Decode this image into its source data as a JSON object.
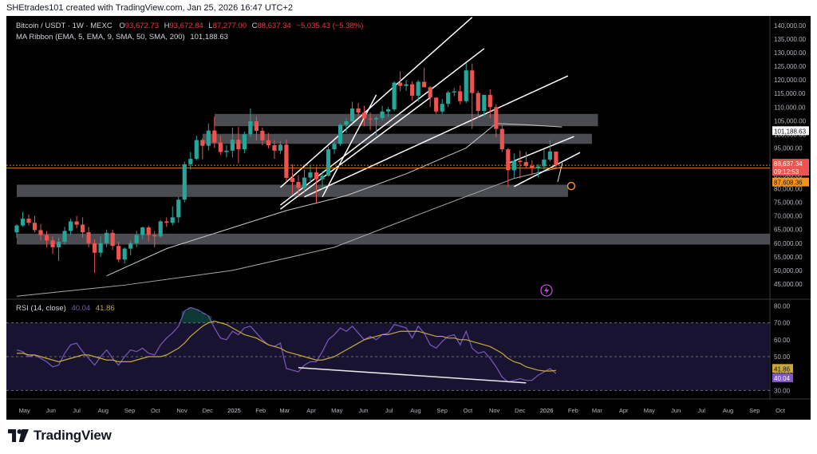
{
  "header": {
    "attribution": "SHEtrades101 created with TradingView.com, Jan 25, 2026 16:47 UTC+2"
  },
  "legend": {
    "symbol": "Bitcoin / USDT · 1W · MEXC",
    "o_label": "O",
    "o_value": "93,672.73",
    "h_label": "H",
    "h_value": "93,672.84",
    "l_label": "L",
    "l_value": "87,277.00",
    "c_label": "C",
    "c_value": "88,637.34",
    "change": "−5,035.43 (−5.38%)",
    "ma_ribbon": "MA Ribbon (EMA, 5, EMA, 9, SMA, 50, SMA, 200)",
    "ma_value": "101,188.63",
    "rsi_label": "RSI (14, close)",
    "rsi_value": "40.04",
    "rsi_ma_value": "41.86"
  },
  "price_axis": {
    "ticks": [
      "140,000.00",
      "135,000.00",
      "130,000.00",
      "125,000.00",
      "120,000.00",
      "115,000.00",
      "110,000.00",
      "105,000.00",
      "100,000.00",
      "95,000.00",
      "90,000.00",
      "85,000.00",
      "80,000.00",
      "75,000.00",
      "70,000.00",
      "65,000.00",
      "60,000.00",
      "55,000.00",
      "50,000.00",
      "45,000.00"
    ],
    "ma_label": "101,188.63",
    "price_label": "88,637.34",
    "countdown_label": "09:12:53",
    "orange_label": "87,608.36"
  },
  "rsi_axis": {
    "ticks": [
      "80.00",
      "70.00",
      "60.00",
      "50.00",
      "40.00",
      "30.00"
    ],
    "rsi_ma_label": "41.86",
    "rsi_label": "40.04"
  },
  "time_axis": {
    "labels": [
      "May",
      "Jun",
      "Jul",
      "Aug",
      "Sep",
      "Oct",
      "Nov",
      "Dec",
      "2025",
      "Feb",
      "Mar",
      "Apr",
      "May",
      "Jun",
      "Jul",
      "Aug",
      "Sep",
      "Oct",
      "Nov",
      "Dec",
      "2026",
      "Feb",
      "Mar",
      "Apr",
      "May",
      "Jun",
      "Jul",
      "Aug",
      "Sep",
      "Oct"
    ]
  },
  "footer": {
    "brand": "TradingView"
  },
  "colors": {
    "up": "#26a69a",
    "down": "#ef5350",
    "rsi": "#7e57c2",
    "rsi_ma": "#c8a83a",
    "orange": "#f7931a",
    "zone": "#5d5f66",
    "background": "#000000"
  },
  "chart_data": [
    {
      "type": "candlestick",
      "title": "Bitcoin / USDT · 1W · MEXC",
      "x_range": [
        "2024-04-22",
        "2026-10-31"
      ],
      "y_range": [
        40000,
        143500
      ],
      "x_start": "2024-04-22",
      "interval": "1W",
      "ohlc": [
        [
          64000,
          67000,
          62000,
          66500
        ],
        [
          66500,
          71500,
          66000,
          69000
        ],
        [
          69000,
          70500,
          66500,
          67500
        ],
        [
          67500,
          70000,
          64000,
          64800
        ],
        [
          64800,
          67000,
          61000,
          63000
        ],
        [
          63000,
          64500,
          58500,
          61000
        ],
        [
          61000,
          62500,
          56000,
          58500
        ],
        [
          58500,
          62000,
          53500,
          60500
        ],
        [
          60500,
          66000,
          59500,
          64500
        ],
        [
          64500,
          69000,
          63000,
          68000
        ],
        [
          68000,
          70000,
          65500,
          66800
        ],
        [
          66800,
          69500,
          62000,
          64000
        ],
        [
          64000,
          66000,
          58500,
          60000
        ],
        [
          60000,
          61500,
          49000,
          56500
        ],
        [
          56500,
          62500,
          55000,
          60000
        ],
        [
          60000,
          65000,
          58500,
          63800
        ],
        [
          63800,
          65000,
          57500,
          59000
        ],
        [
          59000,
          60500,
          53000,
          54000
        ],
        [
          54000,
          58500,
          52500,
          58000
        ],
        [
          58000,
          61000,
          55500,
          60000
        ],
        [
          60000,
          64500,
          58500,
          63000
        ],
        [
          63000,
          66000,
          61500,
          65800
        ],
        [
          65800,
          66500,
          60500,
          63000
        ],
        [
          63000,
          64500,
          58500,
          62500
        ],
        [
          62500,
          68500,
          62000,
          68000
        ],
        [
          68000,
          69500,
          66000,
          67500
        ],
        [
          67500,
          73500,
          66500,
          69500
        ],
        [
          69500,
          77000,
          67500,
          76000
        ],
        [
          76000,
          90000,
          75000,
          89000
        ],
        [
          89000,
          93500,
          87000,
          91000
        ],
        [
          91000,
          99500,
          90500,
          97900
        ],
        [
          97900,
          98500,
          90800,
          95800
        ],
        [
          95800,
          104000,
          94000,
          101400
        ],
        [
          101400,
          106500,
          95000,
          97000
        ],
        [
          97000,
          99500,
          92500,
          93500
        ],
        [
          93500,
          96000,
          91500,
          94000
        ],
        [
          94000,
          102500,
          91500,
          98000
        ],
        [
          98000,
          102700,
          89300,
          94500
        ],
        [
          94500,
          101000,
          93000,
          100000
        ],
        [
          100000,
          109500,
          99000,
          104800
        ],
        [
          104800,
          106500,
          97800,
          101300
        ],
        [
          101300,
          102500,
          96000,
          97800
        ],
        [
          97800,
          100500,
          94800,
          96000
        ],
        [
          96000,
          98000,
          91000,
          94000
        ],
        [
          94000,
          97500,
          92800,
          96200
        ],
        [
          96200,
          98000,
          82500,
          84000
        ],
        [
          84000,
          89000,
          78000,
          82500
        ],
        [
          82500,
          85000,
          77000,
          80300
        ],
        [
          80300,
          87000,
          79000,
          84100
        ],
        [
          84100,
          88500,
          82000,
          86000
        ],
        [
          86000,
          88000,
          74500,
          83500
        ],
        [
          83500,
          86500,
          80000,
          84800
        ],
        [
          84800,
          95500,
          84500,
          94500
        ],
        [
          94500,
          97500,
          92800,
          96500
        ],
        [
          96500,
          104000,
          95800,
          103500
        ],
        [
          103500,
          105800,
          100500,
          104800
        ],
        [
          104800,
          112000,
          104000,
          109500
        ],
        [
          109500,
          111500,
          106500,
          108000
        ],
        [
          108000,
          110500,
          103000,
          105800
        ],
        [
          105800,
          108000,
          101500,
          105500
        ],
        [
          105500,
          106500,
          99500,
          106000
        ],
        [
          106000,
          110500,
          105000,
          108400
        ],
        [
          108400,
          110000,
          106500,
          109200
        ],
        [
          109200,
          119500,
          108500,
          119000
        ],
        [
          119000,
          123200,
          115800,
          117800
        ],
        [
          117800,
          120000,
          116000,
          118400
        ],
        [
          118400,
          119500,
          112500,
          114200
        ],
        [
          114200,
          120000,
          112000,
          119300
        ],
        [
          119300,
          124500,
          117500,
          117300
        ],
        [
          117300,
          117800,
          110000,
          113500
        ],
        [
          113500,
          113500,
          107500,
          108400
        ],
        [
          108400,
          113000,
          107500,
          111200
        ],
        [
          111200,
          116000,
          110000,
          115400
        ],
        [
          115400,
          117000,
          114000,
          115800
        ],
        [
          115800,
          118000,
          111000,
          112200
        ],
        [
          112200,
          126200,
          111500,
          123500
        ],
        [
          123500,
          126000,
          102000,
          115200
        ],
        [
          115200,
          116000,
          106000,
          108600
        ],
        [
          108600,
          113500,
          106500,
          114500
        ],
        [
          114500,
          116500,
          106000,
          110000
        ],
        [
          110000,
          111000,
          98900,
          102000
        ],
        [
          102000,
          104000,
          93500,
          94500
        ],
        [
          94500,
          95000,
          80600,
          86800
        ],
        [
          86800,
          93000,
          84000,
          90300
        ],
        [
          90300,
          94000,
          83800,
          89800
        ],
        [
          89800,
          93500,
          87500,
          88400
        ],
        [
          88400,
          90500,
          85000,
          87500
        ],
        [
          87500,
          89000,
          84200,
          88200
        ],
        [
          88200,
          94500,
          87000,
          90700
        ],
        [
          90700,
          97900,
          90000,
          93700
        ],
        [
          93672.73,
          93672.84,
          87277,
          88637.34
        ]
      ],
      "ma_ribbon_value": 101188.63,
      "sma200": {
        "x": [
          "2024-04-22",
          "2024-08-26",
          "2024-12-30",
          "2025-04-28",
          "2025-08-25",
          "2025-11-24",
          "2026-01-19"
        ],
        "y": [
          40500,
          44600,
          50000,
          58500,
          73000,
          83800,
          88000
        ]
      },
      "sma50": {
        "x": [
          "2024-08-05",
          "2024-10-14",
          "2024-12-23",
          "2025-03-03",
          "2025-05-12",
          "2025-07-21",
          "2025-09-29",
          "2025-11-03",
          "2025-12-08",
          "2026-01-19"
        ],
        "y": [
          48000,
          58000,
          65000,
          72000,
          77500,
          85500,
          95000,
          104000,
          103500,
          102700
        ]
      },
      "support_zones": [
        {
          "from": "2024-12-09",
          "to": "2026-03-02",
          "low": 103000,
          "high": 107500
        },
        {
          "from": "2024-11-25",
          "to": "2026-02-23",
          "low": 96500,
          "high": 100200
        },
        {
          "from": "2024-04-22",
          "to": "2026-01-26",
          "low": 77000,
          "high": 81500
        },
        {
          "from": "2024-04-22",
          "to": "2026-10-31",
          "low": 59500,
          "high": 63500
        }
      ],
      "horizontal_lines": [
        {
          "price": 88637.34
        },
        {
          "price": 87608.36
        }
      ],
      "trendlines": [
        {
          "x1": "2025-02-24",
          "y1": 80500,
          "x2": "2025-10-06",
          "y2": 143000
        },
        {
          "x1": "2025-02-24",
          "y1": 74000,
          "x2": "2025-10-20",
          "y2": 131500
        },
        {
          "x1": "2025-03-24",
          "y1": 77000,
          "x2": "2026-01-26",
          "y2": 121500
        },
        {
          "x1": "2025-04-14",
          "y1": 77000,
          "x2": "2025-06-16",
          "y2": 114500
        },
        {
          "x1": "2025-02-24",
          "y1": 72500,
          "x2": "2025-08-18",
          "y2": 113500
        },
        {
          "x1": "2025-11-17",
          "y1": 89300,
          "x2": "2026-02-02",
          "y2": 99200
        },
        {
          "x1": "2025-11-24",
          "y1": 80800,
          "x2": "2026-02-09",
          "y2": 93300
        }
      ],
      "target_marker": {
        "x": "2026-01-26",
        "y": 81000
      }
    },
    {
      "type": "line",
      "title": "RSI (14, close)",
      "y_range": [
        25,
        83.5
      ],
      "x_start": "2024-04-22",
      "interval": "1W",
      "series": [
        {
          "name": "RSI (14, close)",
          "values": [
            54,
            53,
            50,
            51,
            49,
            47,
            44,
            45,
            52,
            57,
            58,
            53,
            49,
            45,
            50,
            54,
            49,
            45,
            50,
            54,
            53,
            55,
            52,
            51,
            57,
            61,
            64,
            68,
            77,
            79,
            78,
            76,
            74,
            67,
            61,
            60,
            65,
            63,
            67,
            68,
            64,
            60,
            57,
            56,
            58,
            43,
            42,
            41,
            45,
            47,
            47,
            53,
            60,
            63,
            67,
            65,
            68,
            64,
            60,
            62,
            60,
            63,
            64,
            69,
            68,
            67,
            61,
            68,
            64,
            57,
            55,
            59,
            62,
            63,
            57,
            65,
            55,
            52,
            53,
            49,
            44,
            38,
            35,
            36,
            37,
            36,
            36,
            39,
            41,
            43,
            40.04
          ]
        },
        {
          "name": "MA",
          "values": [
            52,
            52,
            51,
            51,
            50,
            49,
            48,
            47,
            48,
            49,
            50,
            51,
            51,
            50,
            49,
            48,
            48,
            47,
            47,
            47,
            48,
            49,
            50,
            50,
            50,
            51,
            53,
            55,
            58,
            62,
            65,
            68,
            70,
            71,
            70,
            69,
            67,
            65,
            63,
            62,
            61,
            59,
            57,
            56,
            55,
            53,
            52,
            51,
            50,
            49,
            48,
            48,
            49,
            50,
            52,
            54,
            56,
            58,
            60,
            61,
            62,
            63,
            63,
            64,
            65,
            65,
            65,
            65,
            64,
            63,
            62,
            62,
            61,
            61,
            60,
            60,
            59,
            58,
            57,
            56,
            54,
            52,
            49,
            47,
            46,
            44,
            43,
            42,
            41.5,
            41.5,
            41.86
          ]
        }
      ],
      "levels": [
        70,
        50,
        30
      ],
      "divergence_line": {
        "x1": "2025-03-17",
        "y1": 43.5,
        "x2": "2025-12-08",
        "y2": 34.5
      }
    }
  ]
}
